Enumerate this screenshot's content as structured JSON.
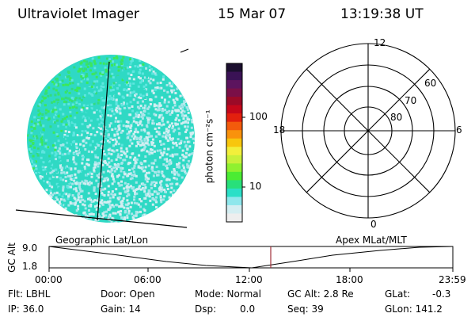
{
  "header": {
    "instrument": "Ultraviolet Imager",
    "date": "15 Mar 07",
    "time": "13:19:38 UT"
  },
  "colorbar": {
    "unit_label": "photon cm⁻²s⁻¹",
    "ticks": [
      "100",
      "10"
    ],
    "colors": [
      "#1b0f2e",
      "#3a1255",
      "#5c145e",
      "#7a0f47",
      "#9b0a27",
      "#c5071a",
      "#e2200e",
      "#f35b0c",
      "#f9920c",
      "#f8c60d",
      "#f2ef3b",
      "#c8f03a",
      "#8ff130",
      "#4bec33",
      "#28e07a",
      "#2bdfc7",
      "#8fe7ec",
      "#d4eef2",
      "#eeeeee"
    ]
  },
  "polar_plot": {
    "mlt_labels": [
      "12",
      "18",
      "6",
      "0"
    ],
    "lat_labels": [
      "60",
      "70",
      "80"
    ]
  },
  "timeline": {
    "left_label": "Geographic Lat/Lon",
    "right_label": "Apex MLat/MLT",
    "axis_title": "GC Alt",
    "y_ticks": [
      "9.0",
      "1.8"
    ],
    "x_ticks": [
      "00:00",
      "06:00",
      "12:00",
      "18:00",
      "23:59"
    ],
    "marker_color": "#a0303a"
  },
  "info": {
    "flt": "Flt: LBHL",
    "ip": "IP: 36.0",
    "door": "Door: Open",
    "gain": "Gain: 14",
    "mode": "Mode: Normal",
    "dsp_label": "Dsp:",
    "dsp_value": "0.0",
    "gcalt": "GC Alt: 2.8 Re",
    "seq": "Seq: 39",
    "glat_label": "GLat:",
    "glat_value": "-0.3",
    "glon": "GLon: 141.2"
  }
}
